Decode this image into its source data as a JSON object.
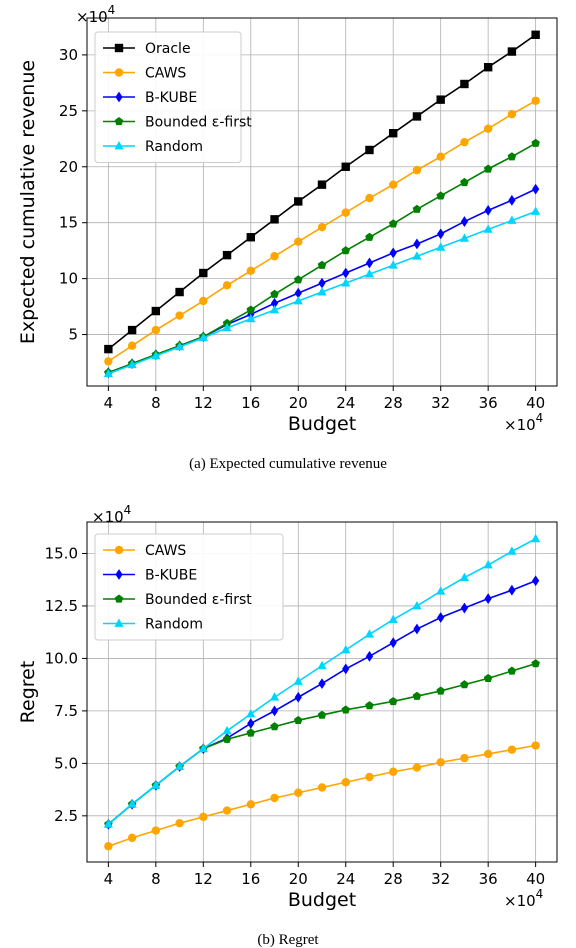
{
  "chart_data": [
    {
      "type": "line",
      "caption": "(a) Expected cumulative revenue",
      "xlabel": "Budget",
      "ylabel": "Expected cumulative revenue",
      "x_multiplier": "×10",
      "x_multiplier_exp": "4",
      "y_multiplier": "×10",
      "y_multiplier_exp": "4",
      "x": [
        4,
        6,
        8,
        10,
        12,
        14,
        16,
        18,
        20,
        22,
        24,
        26,
        28,
        30,
        32,
        34,
        36,
        38,
        40
      ],
      "xticks": [
        4,
        8,
        12,
        16,
        20,
        24,
        28,
        32,
        36,
        40
      ],
      "xlim": [
        2.2,
        41.8
      ],
      "yticks": [
        5,
        10,
        15,
        20,
        25,
        30
      ],
      "ytick_labels": [
        "5",
        "10",
        "15",
        "20",
        "25",
        "30"
      ],
      "ylim": [
        0.4,
        33.3
      ],
      "grid": true,
      "legend_position": "top-left",
      "series": [
        {
          "name": "Oracle",
          "color": "#000000",
          "marker": "square",
          "values": [
            3.7,
            5.4,
            7.1,
            8.8,
            10.5,
            12.1,
            13.7,
            15.3,
            16.9,
            18.4,
            20.0,
            21.5,
            23.0,
            24.5,
            26.0,
            27.4,
            28.9,
            30.3,
            31.8
          ]
        },
        {
          "name": "CAWS",
          "color": "#FFA500",
          "marker": "circle",
          "values": [
            2.6,
            4.0,
            5.4,
            6.7,
            8.0,
            9.4,
            10.7,
            12.0,
            13.3,
            14.6,
            15.9,
            17.2,
            18.4,
            19.7,
            20.9,
            22.2,
            23.4,
            24.7,
            25.9
          ]
        },
        {
          "name": "B-KUBE",
          "color": "#0000FF",
          "marker": "diamond",
          "values": [
            1.6,
            2.4,
            3.2,
            4.0,
            4.8,
            5.9,
            6.8,
            7.8,
            8.7,
            9.6,
            10.5,
            11.4,
            12.3,
            13.1,
            14.0,
            15.1,
            16.1,
            17.0,
            18.0
          ]
        },
        {
          "name": "Bounded ε-first",
          "color": "#008000",
          "marker": "pentagon",
          "values": [
            1.6,
            2.4,
            3.2,
            4.0,
            4.8,
            6.0,
            7.2,
            8.6,
            9.9,
            11.2,
            12.5,
            13.7,
            14.9,
            16.2,
            17.4,
            18.6,
            19.8,
            20.9,
            22.1
          ]
        },
        {
          "name": "Random",
          "color": "#00D5FF",
          "marker": "triangle",
          "values": [
            1.5,
            2.3,
            3.1,
            3.9,
            4.7,
            5.6,
            6.4,
            7.2,
            8.0,
            8.8,
            9.6,
            10.4,
            11.2,
            12.0,
            12.8,
            13.6,
            14.4,
            15.2,
            16.0
          ]
        }
      ]
    },
    {
      "type": "line",
      "caption": "(b) Regret",
      "xlabel": "Budget",
      "ylabel": "Regret",
      "x_multiplier": "×10",
      "x_multiplier_exp": "4",
      "y_multiplier": "×10",
      "y_multiplier_exp": "4",
      "x": [
        4,
        6,
        8,
        10,
        12,
        14,
        16,
        18,
        20,
        22,
        24,
        26,
        28,
        30,
        32,
        34,
        36,
        38,
        40
      ],
      "xticks": [
        4,
        8,
        12,
        16,
        20,
        24,
        28,
        32,
        36,
        40
      ],
      "xlim": [
        2.2,
        41.8
      ],
      "yticks": [
        2.5,
        5.0,
        7.5,
        10.0,
        12.5,
        15.0
      ],
      "ytick_labels": [
        "2.5",
        "5.0",
        "7.5",
        "10.0",
        "12.5",
        "15.0"
      ],
      "ylim": [
        0.3,
        16.5
      ],
      "grid": true,
      "legend_position": "top-left",
      "series": [
        {
          "name": "CAWS",
          "color": "#FFA500",
          "marker": "circle",
          "values": [
            1.05,
            1.45,
            1.8,
            2.15,
            2.45,
            2.75,
            3.05,
            3.35,
            3.6,
            3.85,
            4.1,
            4.35,
            4.6,
            4.8,
            5.05,
            5.25,
            5.45,
            5.65,
            5.85
          ]
        },
        {
          "name": "B-KUBE",
          "color": "#0000FF",
          "marker": "diamond",
          "values": [
            2.1,
            3.05,
            3.95,
            4.85,
            5.7,
            6.2,
            6.9,
            7.5,
            8.15,
            8.8,
            9.5,
            10.1,
            10.75,
            11.4,
            11.95,
            12.4,
            12.85,
            13.25,
            13.7
          ]
        },
        {
          "name": "Bounded ε-first",
          "color": "#008000",
          "marker": "pentagon",
          "values": [
            2.1,
            3.05,
            3.95,
            4.85,
            5.7,
            6.15,
            6.45,
            6.75,
            7.05,
            7.3,
            7.55,
            7.75,
            7.95,
            8.2,
            8.45,
            8.75,
            9.05,
            9.4,
            9.75
          ]
        },
        {
          "name": "Random",
          "color": "#00D5FF",
          "marker": "triangle",
          "values": [
            2.1,
            3.05,
            3.95,
            4.85,
            5.7,
            6.55,
            7.35,
            8.15,
            8.9,
            9.65,
            10.4,
            11.15,
            11.85,
            12.5,
            13.2,
            13.85,
            14.45,
            15.1,
            15.7
          ]
        }
      ]
    }
  ]
}
